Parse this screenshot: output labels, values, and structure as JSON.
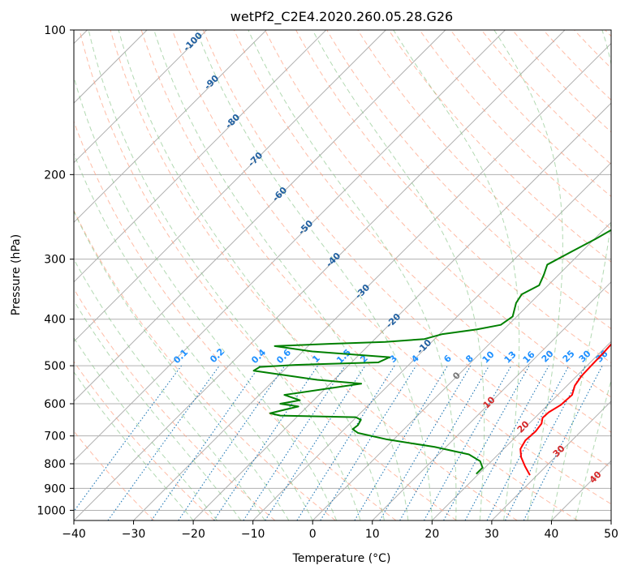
{
  "chart_data": {
    "type": "line",
    "subtype": "skew-t log-p diagram",
    "title": "wetPf2_C2E4.2020.260.05.28.G26",
    "xlabel": "Temperature (°C)",
    "ylabel": "Pressure (hPa)",
    "xlim": [
      -40,
      50
    ],
    "ylim": [
      1050,
      100
    ],
    "yscale": "log",
    "grid": true,
    "x_ticks": [
      -40,
      -30,
      -20,
      -10,
      0,
      10,
      20,
      30,
      40,
      50
    ],
    "y_ticks": [
      100,
      200,
      300,
      400,
      500,
      600,
      700,
      800,
      900,
      1000
    ],
    "series": [
      {
        "role": "temperature",
        "color": "#ff0000",
        "points": [
          [
            28.8,
            845
          ],
          [
            26.5,
            810
          ],
          [
            24.3,
            775
          ],
          [
            22.8,
            745
          ],
          [
            22.2,
            715
          ],
          [
            22.4,
            685
          ],
          [
            22.1,
            660
          ],
          [
            21.3,
            642
          ],
          [
            21.4,
            625
          ],
          [
            22.2,
            603
          ],
          [
            22.4,
            575
          ],
          [
            21.3,
            550
          ],
          [
            20.8,
            525
          ],
          [
            20.7,
            500
          ],
          [
            20.6,
            470
          ],
          [
            20.4,
            445
          ],
          [
            20.2,
            432
          ],
          [
            19.1,
            418
          ],
          [
            17.8,
            400
          ],
          [
            16.3,
            372
          ],
          [
            14.8,
            345
          ],
          [
            13.1,
            318
          ],
          [
            11.3,
            290
          ],
          [
            9.6,
            265
          ],
          [
            8.2,
            245
          ],
          [
            6.8,
            225
          ],
          [
            5.2,
            203
          ],
          [
            3.3,
            180
          ],
          [
            1.8,
            165
          ],
          [
            0.6,
            150
          ],
          [
            0.5,
            137
          ],
          [
            0.8,
            126
          ],
          [
            1.7,
            116
          ],
          [
            3.4,
            108
          ],
          [
            5.1,
            100
          ]
        ]
      },
      {
        "role": "dewpoint",
        "color": "#008000",
        "points": [
          [
            19.6,
            840
          ],
          [
            19.6,
            815
          ],
          [
            18.1,
            790
          ],
          [
            15.1,
            765
          ],
          [
            8.1,
            738
          ],
          [
            -1.1,
            712
          ],
          [
            -7.1,
            690
          ],
          [
            -8.6,
            678
          ],
          [
            -8.4,
            665
          ],
          [
            -8.8,
            648
          ],
          [
            -10.1,
            640
          ],
          [
            -23.0,
            635
          ],
          [
            -25.1,
            628
          ],
          [
            -23.0,
            616
          ],
          [
            -21.5,
            608
          ],
          [
            -25.0,
            600
          ],
          [
            -22.3,
            590
          ],
          [
            -25.8,
            575
          ],
          [
            -14.8,
            545
          ],
          [
            -22.8,
            535
          ],
          [
            -27.0,
            527
          ],
          [
            -35.0,
            512
          ],
          [
            -34.6,
            503
          ],
          [
            -29.0,
            498
          ],
          [
            -15.5,
            492
          ],
          [
            -14.5,
            480
          ],
          [
            -28.4,
            467
          ],
          [
            -35.6,
            455
          ],
          [
            -26.4,
            450
          ],
          [
            -17.8,
            446
          ],
          [
            -11.7,
            440
          ],
          [
            -9.6,
            430
          ],
          [
            -4.5,
            420
          ],
          [
            -1.3,
            411
          ],
          [
            -0.7,
            395
          ],
          [
            -2.4,
            370
          ],
          [
            -2.9,
            355
          ],
          [
            -1.5,
            340
          ],
          [
            -2.5,
            323
          ],
          [
            -3.6,
            308
          ],
          [
            -1.8,
            290
          ],
          [
            0.2,
            272
          ],
          [
            1.9,
            255
          ],
          [
            2.7,
            238
          ],
          [
            2.9,
            222
          ],
          [
            2.7,
            210
          ],
          [
            1.5,
            195
          ],
          [
            -0.5,
            178
          ],
          [
            -1.8,
            165
          ],
          [
            -2.5,
            152
          ],
          [
            -2.5,
            142
          ],
          [
            -2.0,
            130
          ],
          [
            -0.7,
            120
          ],
          [
            0.5,
            112
          ],
          [
            2.5,
            105
          ],
          [
            3.9,
            100
          ]
        ]
      }
    ],
    "dry_adiabat_labels": [
      "-100",
      "-90",
      "-80",
      "-70",
      "-60",
      "-50",
      "-40",
      "-30",
      "-20",
      "-10"
    ],
    "mixing_ratio_labels": [
      "0.1",
      "0.2",
      "0.4",
      "0.6",
      "1",
      "1.5",
      "2",
      "3",
      "4",
      "6",
      "8",
      "10",
      "13",
      "16",
      "20",
      "25",
      "30",
      "36"
    ],
    "moist_adiabat_labels": [
      "0",
      "10",
      "20",
      "30",
      "40"
    ],
    "colors": {
      "isotherm": "#b0b0b0",
      "dry_adiabat": "#ff9f80",
      "moist_adiabat": "#7fbf7f",
      "mixing_ratio": "#1f77b4",
      "mixing_ratio_label": "#1e90ff",
      "dry_adiabat_label": "#1f5fa0",
      "moist_adiabat_label": "#d62728",
      "zero_label": "#777777"
    }
  }
}
